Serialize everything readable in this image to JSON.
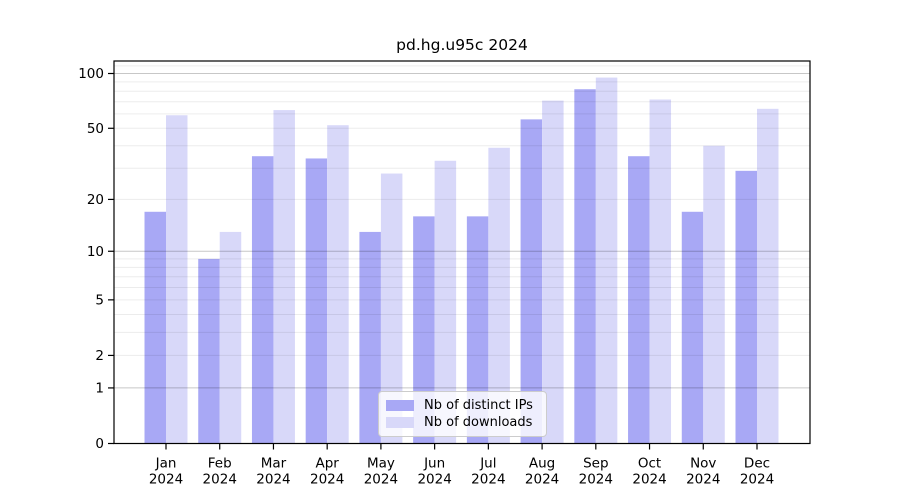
{
  "chart_data": {
    "type": "bar",
    "title": "pd.hg.u95c 2024",
    "categories": [
      "Jan",
      "Feb",
      "Mar",
      "Apr",
      "May",
      "Jun",
      "Jul",
      "Aug",
      "Sep",
      "Oct",
      "Nov",
      "Dec"
    ],
    "category_year": "2024",
    "series": [
      {
        "name": "Nb of distinct IPs",
        "color": "#a8a8f5",
        "values": [
          17,
          9,
          35,
          34,
          13,
          16,
          16,
          56,
          82,
          35,
          17,
          29
        ]
      },
      {
        "name": "Nb of downloads",
        "color": "#d8d8f9",
        "values": [
          59,
          13,
          63,
          52,
          28,
          33,
          39,
          71,
          95,
          72,
          40,
          64
        ]
      }
    ],
    "yscale": "log10(1+x)",
    "ylim": [
      0,
      117
    ],
    "yticks": [
      100,
      50,
      20,
      10,
      5,
      2,
      1,
      0
    ],
    "major_gridlines": [
      1,
      10,
      100
    ],
    "minor_gridlines": [
      2,
      3,
      4,
      5,
      6,
      7,
      8,
      9,
      20,
      30,
      40,
      50,
      60,
      70,
      80,
      90,
      110
    ],
    "grid": true,
    "legend_position": "lower center"
  }
}
